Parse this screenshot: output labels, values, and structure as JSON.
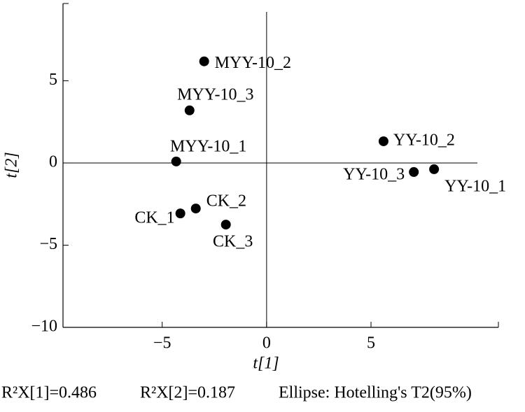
{
  "chart_data": {
    "type": "scatter",
    "x_label": "t[1]",
    "y_label": "t[2]",
    "point_labels": [
      "MYY-10_2",
      "MYY-10_3",
      "MYY-10_1",
      "CK_1",
      "CK_2",
      "CK_3",
      "YY-10_2",
      "YY-10_3",
      "YY-10_1"
    ],
    "x": [
      -2.99,
      -3.69,
      -4.33,
      -4.13,
      -3.39,
      -1.95,
      5.6,
      7.05,
      8.02
    ],
    "y": [
      6.18,
      3.2,
      0.09,
      -3.07,
      -2.77,
      -3.75,
      1.32,
      -0.55,
      -0.38
    ],
    "color": "#000000",
    "xlim": [
      -9.75,
      11.1
    ],
    "ylim": [
      -10,
      9.7
    ],
    "xticks": [
      {
        "value": -5,
        "label": "−5"
      },
      0,
      5
    ],
    "yticks": [
      {
        "value": -10,
        "label": "−10"
      },
      {
        "value": -5,
        "label": "−5"
      },
      0,
      5
    ],
    "footnotes": [
      "R²X[1]=0.486",
      "R²X[2]=0.187",
      "Ellipse: Hotelling's T2(95%)"
    ]
  }
}
